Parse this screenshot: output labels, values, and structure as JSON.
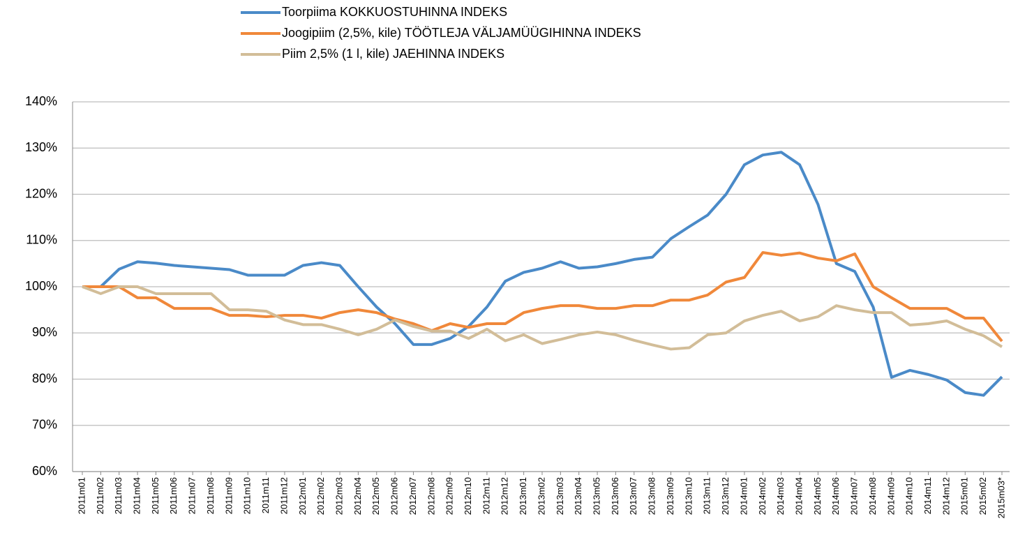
{
  "chart_data": {
    "type": "line",
    "categories": [
      "2011m01",
      "2011m02",
      "2011m03",
      "2011m04",
      "2011m05",
      "2011m06",
      "2011m07",
      "2011m08",
      "2011m09",
      "2011m10",
      "2011m11",
      "2011m12",
      "2012m01",
      "2012m02",
      "2012m03",
      "2012m04",
      "2012m05",
      "2012m06",
      "2012m07",
      "2012m08",
      "2012m09",
      "2012m10",
      "2012m11",
      "2012m12",
      "2013m01",
      "2013m02",
      "2013m03",
      "2013m04",
      "2013m05",
      "2013m06",
      "2013m07",
      "2013m08",
      "2013m09",
      "2013m10",
      "2013m11",
      "2013m12",
      "2014m01",
      "2014m02",
      "2014m03",
      "2014m04",
      "2014m05",
      "2014m06",
      "2014m07",
      "2014m08",
      "2014m09",
      "2014m10",
      "2014m11",
      "2014m12",
      "2015m01",
      "2015m02",
      "2015m03*"
    ],
    "series": [
      {
        "name": "Toorpiima KOKKUOSTUHINNA INDEKS",
        "color": "#4a8ac8",
        "values": [
          100,
          100,
          103.8,
          105.4,
          105.1,
          104.6,
          104.3,
          104,
          103.7,
          102.5,
          102.5,
          102.5,
          104.6,
          105.2,
          104.6,
          100,
          95.6,
          92,
          87.5,
          87.5,
          88.8,
          91.4,
          95.6,
          101.2,
          103.1,
          104,
          105.4,
          104,
          104.3,
          105,
          105.9,
          106.4,
          110.4,
          113,
          115.5,
          120,
          126.4,
          128.5,
          129.1,
          126.4,
          117.8,
          105,
          103.3,
          95.6,
          80.4,
          81.9,
          81,
          79.8,
          77.1,
          76.5,
          80.5
        ]
      },
      {
        "name": "Joogipiim (2,5%, kile) TÖÖTLEJA VÄLJAMÜÜGIHINNA INDEKS",
        "color": "#f0883a",
        "values": [
          100,
          100,
          100,
          97.6,
          97.6,
          95.3,
          95.3,
          95.3,
          93.8,
          93.8,
          93.5,
          93.8,
          93.8,
          93.2,
          94.4,
          95,
          94.4,
          93,
          92,
          90.5,
          92,
          91.2,
          92,
          92,
          94.4,
          95.3,
          95.9,
          95.9,
          95.3,
          95.3,
          95.9,
          95.9,
          97.1,
          97.1,
          98.2,
          101,
          102,
          107.4,
          106.8,
          107.3,
          106.2,
          105.6,
          107.1,
          100,
          97.6,
          95.3,
          95.3,
          95.3,
          93.2,
          93.2,
          88.2
        ]
      },
      {
        "name": "Piim 2,5% (1 l, kile) JAEHINNA INDEKS",
        "color": "#d2bd98",
        "values": [
          100,
          98.5,
          100,
          100,
          98.5,
          98.5,
          98.5,
          98.5,
          95,
          95,
          94.7,
          92.8,
          91.8,
          91.8,
          90.8,
          89.6,
          90.8,
          92.8,
          91.4,
          90.4,
          90.4,
          88.8,
          90.8,
          88.3,
          89.6,
          87.7,
          88.6,
          89.6,
          90.2,
          89.6,
          88.4,
          87.4,
          86.5,
          86.8,
          89.6,
          90,
          92.6,
          93.8,
          94.7,
          92.6,
          93.5,
          95.9,
          95,
          94.4,
          94.4,
          91.7,
          92,
          92.6,
          90.8,
          89.4,
          87
        ]
      }
    ],
    "ylim": [
      60,
      140
    ],
    "yticks": [
      {
        "value": 60,
        "label": "60%"
      },
      {
        "value": 70,
        "label": "70%"
      },
      {
        "value": 80,
        "label": "80%"
      },
      {
        "value": 90,
        "label": "90%"
      },
      {
        "value": 100,
        "label": "100%"
      },
      {
        "value": 110,
        "label": "110%"
      },
      {
        "value": 120,
        "label": "120%"
      },
      {
        "value": 130,
        "label": "130%"
      },
      {
        "value": 140,
        "label": "140%"
      }
    ],
    "grid": true
  }
}
